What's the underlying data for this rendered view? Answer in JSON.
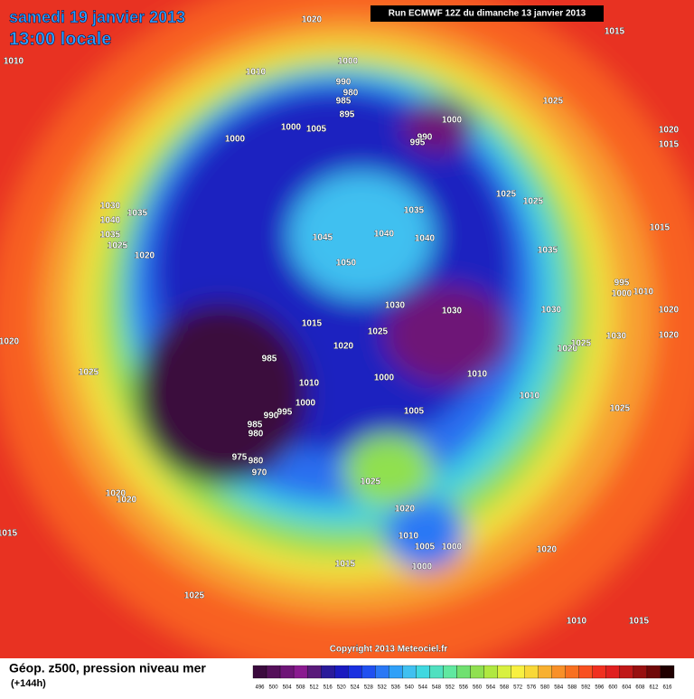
{
  "header": {
    "title": "samedi 19 janvier 2013",
    "time": "13:00 locale",
    "run": "Run ECMWF 12Z du dimanche 13 janvier 2013"
  },
  "isobar_labels": [
    "1020",
    "1015",
    "1010",
    "1010",
    "1000",
    "990",
    "980",
    "985",
    "895",
    "1000",
    "990",
    "995",
    "1025",
    "1020",
    "1015",
    "1000",
    "1000",
    "1005",
    "1025",
    "1025",
    "1035",
    "1035",
    "1030",
    "1040",
    "1035",
    "1025",
    "1020",
    "1045",
    "1040",
    "1040",
    "1050",
    "1035",
    "1015",
    "995",
    "1000",
    "1010",
    "1030",
    "1030",
    "1030",
    "1020",
    "1015",
    "1020",
    "1025",
    "1020",
    "1025",
    "1030",
    "1020",
    "1020",
    "985",
    "1010",
    "1000",
    "1010",
    "1010",
    "1000",
    "995",
    "990",
    "1005",
    "1025",
    "1025",
    "985",
    "980",
    "975",
    "980",
    "970",
    "1025",
    "1020",
    "1020",
    "1020",
    "1015",
    "1010",
    "1005",
    "1000",
    "1020",
    "1015",
    "1000",
    "1025",
    "1010",
    "1015"
  ],
  "copyright": "Copyright 2013 Meteociel.fr",
  "footer": {
    "label": "Géop. z500, pression niveau mer",
    "lead": "(+144h)"
  },
  "legend": {
    "ticks": [
      496,
      500,
      504,
      508,
      512,
      516,
      520,
      524,
      528,
      532,
      536,
      540,
      544,
      548,
      552,
      556,
      560,
      564,
      568,
      572,
      576,
      580,
      584,
      588,
      592,
      596,
      600,
      604,
      608,
      612,
      616
    ],
    "colors": [
      "#3b0a3e",
      "#55105a",
      "#6e1577",
      "#8a1a90",
      "#5a1a7a",
      "#2a1a9a",
      "#1a1ac0",
      "#1a30e0",
      "#2050f0",
      "#2a78f5",
      "#30a0f8",
      "#40c0f0",
      "#40d8e0",
      "#50e0c0",
      "#60e8a0",
      "#70e070",
      "#90e050",
      "#b0e840",
      "#d8f040",
      "#f8f040",
      "#f8d838",
      "#f8b030",
      "#f89028",
      "#f87020",
      "#f85020",
      "#f03020",
      "#e02020",
      "#c01818",
      "#981010",
      "#700808",
      "#200000"
    ]
  }
}
